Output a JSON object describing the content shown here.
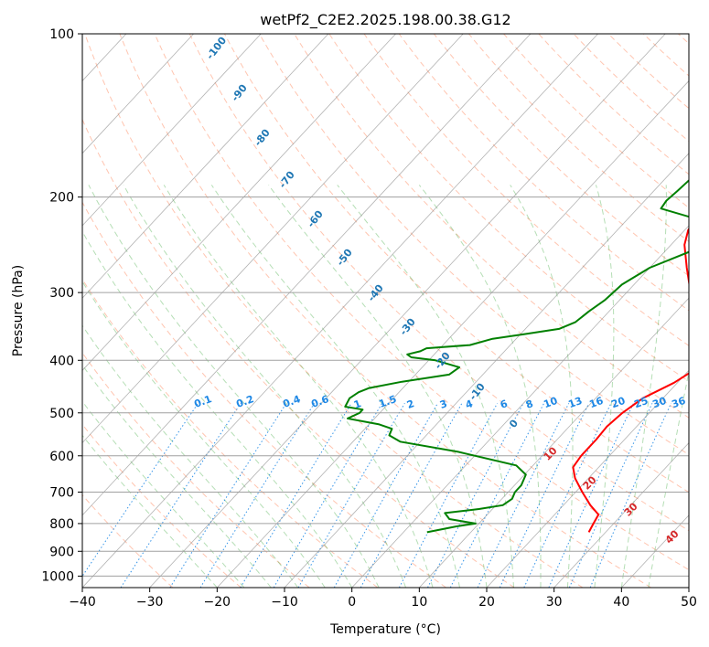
{
  "chart_data": {
    "type": "line",
    "title": "wetPf2_C2E2.2025.198.00.38.G12",
    "xlabel": "Temperature (°C)",
    "ylabel": "Pressure (hPa)",
    "xlim": [
      -40,
      50
    ],
    "ylim": [
      1050,
      100
    ],
    "y_scale": "log",
    "grid": true,
    "x_ticks": [
      -40,
      -30,
      -20,
      -10,
      0,
      10,
      20,
      30,
      40,
      50
    ],
    "y_ticks": [
      100,
      200,
      300,
      400,
      500,
      600,
      700,
      800,
      900,
      1000
    ],
    "colors": {
      "temperature": "#ff0000",
      "dewpoint": "#008000",
      "dry_adiabats": "#ff7f50",
      "moist_adiabats": "#2ca02c",
      "mixing_ratio": "#1e88e5",
      "isotherms": "#808080",
      "dry_labels": "#1f77b4",
      "moist_labels": "#d62728"
    },
    "series": [
      {
        "key": "temperature",
        "points": [
          [
            27.5,
            830
          ],
          [
            27,
            800
          ],
          [
            26.5,
            770
          ],
          [
            24,
            740
          ],
          [
            21,
            700
          ],
          [
            18,
            660
          ],
          [
            16.2,
            630
          ],
          [
            15.8,
            600
          ],
          [
            15.8,
            560
          ],
          [
            15.6,
            530
          ],
          [
            16,
            500
          ],
          [
            17,
            470
          ],
          [
            19.5,
            440
          ],
          [
            20.8,
            415
          ],
          [
            20.3,
            390
          ],
          [
            17.5,
            360
          ],
          [
            13.5,
            330
          ],
          [
            9.5,
            300
          ],
          [
            5.5,
            270
          ],
          [
            2,
            245
          ],
          [
            0.5,
            230
          ],
          [
            -0.3,
            210
          ],
          [
            -1.2,
            195
          ],
          [
            -3.8,
            180
          ],
          [
            -5.8,
            165
          ],
          [
            -6.5,
            150
          ],
          [
            -6.8,
            137
          ],
          [
            -6.8,
            127
          ],
          [
            -6.5,
            118
          ],
          [
            -6,
            110
          ],
          [
            -5.5,
            105
          ],
          [
            -4.5,
            100
          ]
        ]
      },
      {
        "key": "dewpoint",
        "points": [
          [
            3.5,
            830
          ],
          [
            7,
            810
          ],
          [
            9.5,
            800
          ],
          [
            5,
            785
          ],
          [
            3.5,
            765
          ],
          [
            8,
            752
          ],
          [
            11,
            740
          ],
          [
            11.5,
            720
          ],
          [
            11,
            700
          ],
          [
            11,
            680
          ],
          [
            10.2,
            650
          ],
          [
            7.5,
            625
          ],
          [
            -3,
            590
          ],
          [
            -13,
            565
          ],
          [
            -15.5,
            550
          ],
          [
            -16,
            535
          ],
          [
            -18.5,
            525
          ],
          [
            -24,
            512
          ],
          [
            -23,
            500
          ],
          [
            -23,
            493
          ],
          [
            -26,
            487
          ],
          [
            -26.5,
            470
          ],
          [
            -26,
            458
          ],
          [
            -25,
            450
          ],
          [
            -21,
            438
          ],
          [
            -15,
            425
          ],
          [
            -14.5,
            412
          ],
          [
            -19,
            400
          ],
          [
            -23,
            395
          ],
          [
            -24,
            390
          ],
          [
            -22.5,
            385
          ],
          [
            -22,
            380
          ],
          [
            -16,
            375
          ],
          [
            -13.5,
            365
          ],
          [
            -9.5,
            358
          ],
          [
            -5,
            350
          ],
          [
            -3.5,
            340
          ],
          [
            -3,
            325
          ],
          [
            -2.2,
            310
          ],
          [
            -1.8,
            290
          ],
          [
            0,
            270
          ],
          [
            4.2,
            250
          ],
          [
            5.2,
            235
          ],
          [
            4,
            225
          ],
          [
            -6.5,
            210
          ],
          [
            -6.8,
            203
          ],
          [
            -6.5,
            195
          ],
          [
            -6.2,
            185
          ],
          [
            -6.5,
            178
          ],
          [
            -7,
            170
          ],
          [
            -6.3,
            158
          ],
          [
            -5.4,
            148
          ],
          [
            -4.3,
            140
          ],
          [
            -3.5,
            132
          ],
          [
            -3,
            126
          ],
          [
            -3.6,
            118
          ],
          [
            -1.8,
            112
          ],
          [
            -0.8,
            106
          ],
          [
            0.5,
            101
          ],
          [
            1,
            100
          ]
        ]
      }
    ],
    "dry_adiabat_labels": [
      "-100",
      "-90",
      "-80",
      "-70",
      "-60",
      "-50",
      "-40",
      "-30",
      "-20",
      "-10",
      "0"
    ],
    "moist_adiabat_labels": [
      "10",
      "20",
      "30",
      "40"
    ],
    "mixing_ratio_labels": [
      "0.1",
      "0.2",
      "0.4",
      "0.6",
      "1",
      "1.5",
      "2",
      "3",
      "4",
      "6",
      "8",
      "10",
      "13",
      "16",
      "20",
      "25",
      "30",
      "36"
    ]
  }
}
